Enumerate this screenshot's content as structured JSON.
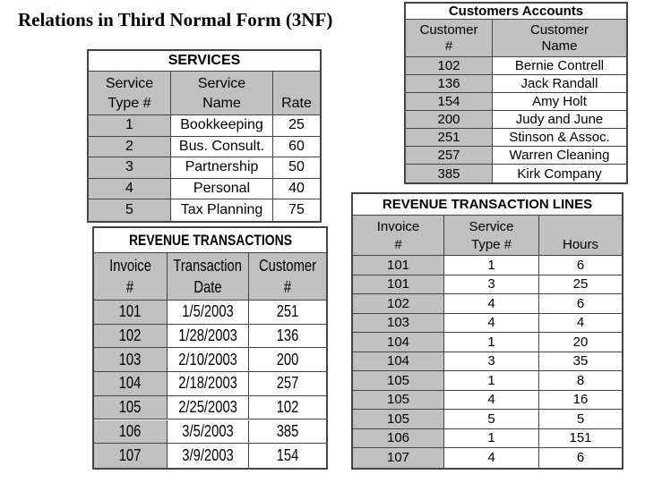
{
  "title": "Relations in Third Normal Form (3NF)",
  "tables": [
    {
      "title": "Customers Accounts",
      "headers": [
        [
          "Customer",
          "#"
        ],
        [
          "Customer",
          "Name"
        ]
      ],
      "rows": [
        [
          "102",
          "Bernie Contrell"
        ],
        [
          "136",
          "Jack Randall"
        ],
        [
          "154",
          "Amy Holt"
        ],
        [
          "200",
          "Judy and June"
        ],
        [
          "251",
          "Stinson & Assoc."
        ],
        [
          "257",
          "Warren Cleaning"
        ],
        [
          "385",
          "Kirk Company"
        ]
      ]
    },
    {
      "title": "SERVICES",
      "headers": [
        [
          "Service",
          "Type #"
        ],
        [
          "Service",
          "Name"
        ],
        [
          "Rate"
        ]
      ],
      "rows": [
        [
          "1",
          "Bookkeeping",
          "25"
        ],
        [
          "2",
          "Bus. Consult.",
          "60"
        ],
        [
          "3",
          "Partnership",
          "50"
        ],
        [
          "4",
          "Personal",
          "40"
        ],
        [
          "5",
          "Tax Planning",
          "75"
        ]
      ]
    },
    {
      "title": "REVENUE TRANSACTIONS",
      "headers": [
        [
          "Invoice",
          "#"
        ],
        [
          "Transaction",
          "Date"
        ],
        [
          "Customer",
          "#"
        ]
      ],
      "rows": [
        [
          "101",
          "1/5/2003",
          "251"
        ],
        [
          "102",
          "1/28/2003",
          "136"
        ],
        [
          "103",
          "2/10/2003",
          "200"
        ],
        [
          "104",
          "2/18/2003",
          "257"
        ],
        [
          "105",
          "2/25/2003",
          "102"
        ],
        [
          "106",
          "3/5/2003",
          "385"
        ],
        [
          "107",
          "3/9/2003",
          "154"
        ]
      ]
    },
    {
      "title": "REVENUE TRANSACTION LINES",
      "headers": [
        [
          "Invoice",
          "#"
        ],
        [
          "Service",
          "Type #"
        ],
        [
          "Hours"
        ]
      ],
      "rows": [
        [
          "101",
          "1",
          "6"
        ],
        [
          "101",
          "3",
          "25"
        ],
        [
          "102",
          "4",
          "6"
        ],
        [
          "103",
          "4",
          "4"
        ],
        [
          "104",
          "1",
          "20"
        ],
        [
          "104",
          "3",
          "35"
        ],
        [
          "105",
          "1",
          "8"
        ],
        [
          "105",
          "4",
          "16"
        ],
        [
          "105",
          "5",
          "5"
        ],
        [
          "106",
          "1",
          "151"
        ],
        [
          "107",
          "4",
          "6"
        ]
      ]
    }
  ]
}
